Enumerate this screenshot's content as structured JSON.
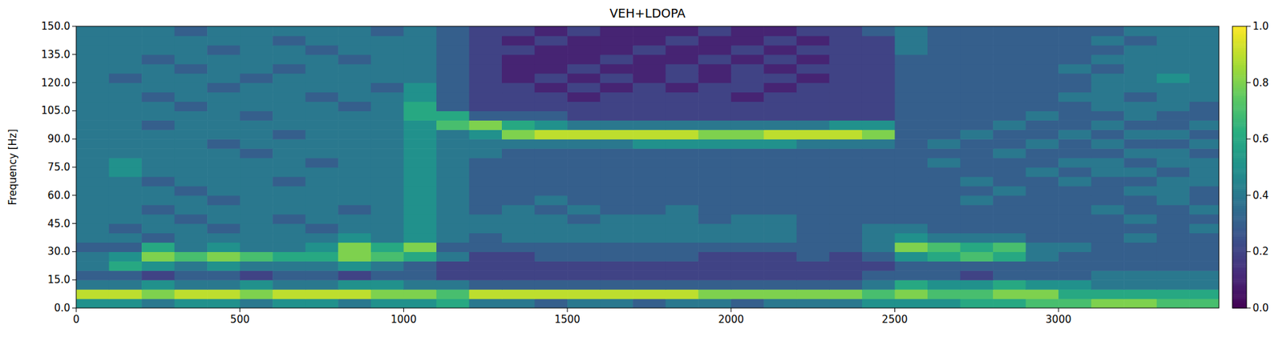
{
  "chart_data": {
    "type": "heatmap",
    "title": "VEH+LDOPA",
    "y_label": "Frequency [Hz]",
    "x": [
      0,
      100,
      200,
      300,
      400,
      500,
      600,
      700,
      800,
      900,
      1000,
      1100,
      1200,
      1300,
      1400,
      1500,
      1600,
      1700,
      1800,
      1900,
      2000,
      2100,
      2200,
      2300,
      2400,
      2500,
      2600,
      2700,
      2800,
      2900,
      3000,
      3100,
      3200,
      3300,
      3400,
      3490
    ],
    "y": [
      0,
      5,
      10,
      15,
      20,
      25,
      30,
      35,
      40,
      45,
      50,
      55,
      60,
      65,
      70,
      75,
      80,
      85,
      90,
      95,
      100,
      105,
      110,
      115,
      120,
      125,
      130,
      135,
      140,
      145,
      150
    ],
    "xlim": [
      0,
      3490
    ],
    "ylim": [
      0,
      150
    ],
    "xticks": [
      0,
      500,
      1000,
      1500,
      2000,
      2500,
      3000
    ],
    "yticks": [
      {
        "value": 0,
        "label": "0.0"
      },
      {
        "value": 15,
        "label": "15.0"
      },
      {
        "value": 30,
        "label": "30.0"
      },
      {
        "value": 45,
        "label": "45.0"
      },
      {
        "value": 60,
        "label": "60.0"
      },
      {
        "value": 75,
        "label": "75.0"
      },
      {
        "value": 90,
        "label": "90.0"
      },
      {
        "value": 105,
        "label": "105.0"
      },
      {
        "value": 120,
        "label": "120.0"
      },
      {
        "value": 135,
        "label": "135.0"
      },
      {
        "value": 150,
        "label": "150.0"
      }
    ],
    "colorbar_lim": [
      0,
      1
    ],
    "colorbar_ticks": [
      {
        "value": 0,
        "label": "0.0"
      },
      {
        "value": 0.2,
        "label": "0.2"
      },
      {
        "value": 0.4,
        "label": "0.4"
      },
      {
        "value": 0.6,
        "label": "0.6"
      },
      {
        "value": 0.8,
        "label": "0.8"
      },
      {
        "value": 1,
        "label": "1.0"
      }
    ],
    "values": [
      [
        0.5,
        0.5,
        0.4,
        0.5,
        0.5,
        0.4,
        0.5,
        0.5,
        0.4,
        0.5,
        0.5,
        0.6,
        0.4,
        0.4,
        0.3,
        0.4,
        0.4,
        0.3,
        0.4,
        0.4,
        0.3,
        0.4,
        0.4,
        0.4,
        0.5,
        0.5,
        0.5,
        0.6,
        0.6,
        0.7,
        0.7,
        0.8,
        0.8,
        0.7,
        0.7
      ],
      [
        0.9,
        0.9,
        0.8,
        0.9,
        0.9,
        0.8,
        0.9,
        0.9,
        0.9,
        0.8,
        0.8,
        0.7,
        0.9,
        0.9,
        0.9,
        0.9,
        0.9,
        0.9,
        0.9,
        0.8,
        0.8,
        0.8,
        0.8,
        0.8,
        0.7,
        0.8,
        0.7,
        0.7,
        0.8,
        0.8,
        0.6,
        0.6,
        0.6,
        0.6,
        0.6
      ],
      [
        0.4,
        0.4,
        0.5,
        0.4,
        0.4,
        0.5,
        0.4,
        0.4,
        0.5,
        0.5,
        0.4,
        0.4,
        0.3,
        0.3,
        0.3,
        0.3,
        0.3,
        0.3,
        0.3,
        0.3,
        0.3,
        0.3,
        0.3,
        0.3,
        0.4,
        0.6,
        0.5,
        0.5,
        0.6,
        0.5,
        0.5,
        0.4,
        0.4,
        0.4,
        0.4
      ],
      [
        0.3,
        0.3,
        0.2,
        0.3,
        0.3,
        0.2,
        0.3,
        0.3,
        0.2,
        0.3,
        0.3,
        0.2,
        0.2,
        0.2,
        0.2,
        0.2,
        0.2,
        0.2,
        0.2,
        0.2,
        0.2,
        0.2,
        0.2,
        0.2,
        0.3,
        0.3,
        0.3,
        0.2,
        0.3,
        0.3,
        0.3,
        0.4,
        0.4,
        0.4,
        0.4
      ],
      [
        0.4,
        0.6,
        0.5,
        0.4,
        0.5,
        0.4,
        0.4,
        0.4,
        0.5,
        0.4,
        0.3,
        0.2,
        0.2,
        0.2,
        0.2,
        0.2,
        0.2,
        0.2,
        0.2,
        0.2,
        0.2,
        0.2,
        0.2,
        0.2,
        0.2,
        0.3,
        0.3,
        0.3,
        0.3,
        0.3,
        0.3,
        0.3,
        0.3,
        0.3,
        0.3
      ],
      [
        0.4,
        0.5,
        0.8,
        0.7,
        0.8,
        0.7,
        0.6,
        0.6,
        0.8,
        0.7,
        0.6,
        0.4,
        0.2,
        0.2,
        0.3,
        0.3,
        0.3,
        0.3,
        0.3,
        0.2,
        0.2,
        0.2,
        0.3,
        0.2,
        0.3,
        0.5,
        0.6,
        0.7,
        0.6,
        0.4,
        0.3,
        0.3,
        0.3,
        0.3,
        0.3
      ],
      [
        0.3,
        0.3,
        0.6,
        0.4,
        0.5,
        0.4,
        0.4,
        0.5,
        0.8,
        0.6,
        0.8,
        0.3,
        0.3,
        0.3,
        0.3,
        0.3,
        0.3,
        0.3,
        0.3,
        0.3,
        0.3,
        0.3,
        0.3,
        0.3,
        0.4,
        0.8,
        0.7,
        0.6,
        0.7,
        0.4,
        0.4,
        0.3,
        0.3,
        0.3,
        0.3
      ],
      [
        0.4,
        0.4,
        0.3,
        0.4,
        0.4,
        0.4,
        0.4,
        0.4,
        0.5,
        0.4,
        0.5,
        0.4,
        0.3,
        0.4,
        0.4,
        0.4,
        0.4,
        0.4,
        0.4,
        0.4,
        0.4,
        0.4,
        0.3,
        0.3,
        0.4,
        0.5,
        0.4,
        0.4,
        0.4,
        0.3,
        0.3,
        0.3,
        0.4,
        0.3,
        0.3
      ],
      [
        0.4,
        0.3,
        0.4,
        0.4,
        0.3,
        0.4,
        0.4,
        0.3,
        0.4,
        0.4,
        0.5,
        0.4,
        0.4,
        0.4,
        0.4,
        0.4,
        0.4,
        0.4,
        0.4,
        0.4,
        0.4,
        0.4,
        0.3,
        0.3,
        0.4,
        0.4,
        0.3,
        0.3,
        0.3,
        0.3,
        0.3,
        0.3,
        0.3,
        0.3,
        0.4
      ],
      [
        0.4,
        0.4,
        0.4,
        0.3,
        0.4,
        0.4,
        0.3,
        0.4,
        0.4,
        0.4,
        0.5,
        0.4,
        0.4,
        0.4,
        0.4,
        0.3,
        0.4,
        0.4,
        0.4,
        0.3,
        0.4,
        0.4,
        0.3,
        0.3,
        0.3,
        0.3,
        0.3,
        0.3,
        0.3,
        0.3,
        0.3,
        0.3,
        0.4,
        0.3,
        0.3
      ],
      [
        0.4,
        0.4,
        0.3,
        0.4,
        0.4,
        0.4,
        0.4,
        0.4,
        0.3,
        0.4,
        0.5,
        0.4,
        0.3,
        0.4,
        0.3,
        0.4,
        0.3,
        0.3,
        0.4,
        0.3,
        0.3,
        0.3,
        0.3,
        0.3,
        0.3,
        0.3,
        0.3,
        0.3,
        0.3,
        0.3,
        0.3,
        0.4,
        0.3,
        0.3,
        0.4
      ],
      [
        0.4,
        0.4,
        0.4,
        0.4,
        0.3,
        0.4,
        0.4,
        0.4,
        0.4,
        0.4,
        0.5,
        0.4,
        0.3,
        0.3,
        0.4,
        0.3,
        0.3,
        0.3,
        0.3,
        0.3,
        0.3,
        0.3,
        0.3,
        0.3,
        0.3,
        0.3,
        0.3,
        0.4,
        0.3,
        0.3,
        0.3,
        0.3,
        0.3,
        0.4,
        0.3
      ],
      [
        0.4,
        0.4,
        0.4,
        0.3,
        0.4,
        0.4,
        0.4,
        0.4,
        0.4,
        0.4,
        0.5,
        0.4,
        0.3,
        0.3,
        0.3,
        0.3,
        0.3,
        0.3,
        0.3,
        0.3,
        0.3,
        0.3,
        0.3,
        0.3,
        0.3,
        0.3,
        0.3,
        0.3,
        0.4,
        0.3,
        0.3,
        0.3,
        0.4,
        0.4,
        0.3
      ],
      [
        0.4,
        0.4,
        0.3,
        0.4,
        0.4,
        0.4,
        0.3,
        0.4,
        0.4,
        0.4,
        0.5,
        0.4,
        0.3,
        0.3,
        0.3,
        0.3,
        0.3,
        0.3,
        0.3,
        0.3,
        0.3,
        0.3,
        0.3,
        0.3,
        0.3,
        0.3,
        0.3,
        0.4,
        0.3,
        0.3,
        0.4,
        0.3,
        0.3,
        0.4,
        0.4
      ],
      [
        0.4,
        0.5,
        0.4,
        0.4,
        0.4,
        0.4,
        0.4,
        0.4,
        0.4,
        0.4,
        0.5,
        0.4,
        0.3,
        0.3,
        0.3,
        0.3,
        0.3,
        0.3,
        0.3,
        0.3,
        0.3,
        0.3,
        0.3,
        0.3,
        0.3,
        0.3,
        0.3,
        0.3,
        0.3,
        0.4,
        0.3,
        0.4,
        0.4,
        0.3,
        0.4
      ],
      [
        0.4,
        0.5,
        0.4,
        0.4,
        0.4,
        0.4,
        0.4,
        0.3,
        0.4,
        0.4,
        0.5,
        0.4,
        0.3,
        0.3,
        0.3,
        0.3,
        0.3,
        0.3,
        0.3,
        0.3,
        0.3,
        0.3,
        0.3,
        0.3,
        0.3,
        0.3,
        0.4,
        0.3,
        0.3,
        0.3,
        0.4,
        0.4,
        0.3,
        0.4,
        0.4
      ],
      [
        0.4,
        0.4,
        0.4,
        0.4,
        0.4,
        0.3,
        0.4,
        0.4,
        0.4,
        0.4,
        0.5,
        0.4,
        0.4,
        0.3,
        0.3,
        0.3,
        0.3,
        0.3,
        0.3,
        0.3,
        0.3,
        0.3,
        0.3,
        0.3,
        0.3,
        0.3,
        0.3,
        0.3,
        0.4,
        0.3,
        0.3,
        0.3,
        0.4,
        0.4,
        0.3
      ],
      [
        0.4,
        0.4,
        0.4,
        0.4,
        0.3,
        0.4,
        0.4,
        0.4,
        0.4,
        0.4,
        0.5,
        0.4,
        0.4,
        0.4,
        0.4,
        0.4,
        0.4,
        0.5,
        0.5,
        0.5,
        0.5,
        0.5,
        0.4,
        0.4,
        0.4,
        0.3,
        0.4,
        0.3,
        0.3,
        0.4,
        0.3,
        0.4,
        0.3,
        0.3,
        0.4
      ],
      [
        0.4,
        0.4,
        0.4,
        0.4,
        0.4,
        0.4,
        0.3,
        0.4,
        0.4,
        0.4,
        0.5,
        0.4,
        0.5,
        0.8,
        0.9,
        0.9,
        0.9,
        0.9,
        0.9,
        0.8,
        0.8,
        0.9,
        0.9,
        0.9,
        0.8,
        0.3,
        0.3,
        0.4,
        0.3,
        0.3,
        0.4,
        0.3,
        0.4,
        0.4,
        0.3
      ],
      [
        0.4,
        0.4,
        0.3,
        0.4,
        0.4,
        0.4,
        0.4,
        0.4,
        0.4,
        0.4,
        0.5,
        0.7,
        0.8,
        0.6,
        0.5,
        0.4,
        0.4,
        0.4,
        0.4,
        0.4,
        0.4,
        0.4,
        0.4,
        0.5,
        0.5,
        0.3,
        0.3,
        0.3,
        0.4,
        0.3,
        0.3,
        0.4,
        0.3,
        0.3,
        0.4
      ],
      [
        0.4,
        0.4,
        0.4,
        0.4,
        0.4,
        0.3,
        0.4,
        0.4,
        0.4,
        0.4,
        0.6,
        0.6,
        0.3,
        0.3,
        0.3,
        0.2,
        0.2,
        0.2,
        0.2,
        0.2,
        0.2,
        0.2,
        0.2,
        0.2,
        0.2,
        0.3,
        0.3,
        0.3,
        0.3,
        0.4,
        0.3,
        0.3,
        0.4,
        0.3,
        0.3
      ],
      [
        0.4,
        0.4,
        0.4,
        0.3,
        0.4,
        0.4,
        0.4,
        0.4,
        0.3,
        0.4,
        0.6,
        0.3,
        0.2,
        0.2,
        0.2,
        0.2,
        0.2,
        0.2,
        0.2,
        0.2,
        0.2,
        0.2,
        0.2,
        0.2,
        0.2,
        0.3,
        0.3,
        0.3,
        0.3,
        0.3,
        0.3,
        0.4,
        0.4,
        0.4,
        0.3
      ],
      [
        0.4,
        0.4,
        0.3,
        0.4,
        0.4,
        0.4,
        0.4,
        0.3,
        0.4,
        0.4,
        0.5,
        0.3,
        0.2,
        0.2,
        0.2,
        0.1,
        0.2,
        0.2,
        0.2,
        0.2,
        0.1,
        0.2,
        0.2,
        0.2,
        0.2,
        0.3,
        0.3,
        0.3,
        0.3,
        0.3,
        0.4,
        0.4,
        0.3,
        0.4,
        0.4
      ],
      [
        0.4,
        0.4,
        0.4,
        0.4,
        0.3,
        0.4,
        0.4,
        0.4,
        0.4,
        0.3,
        0.5,
        0.3,
        0.2,
        0.2,
        0.1,
        0.2,
        0.1,
        0.2,
        0.1,
        0.2,
        0.2,
        0.1,
        0.2,
        0.2,
        0.2,
        0.3,
        0.3,
        0.3,
        0.3,
        0.3,
        0.3,
        0.4,
        0.4,
        0.4,
        0.4
      ],
      [
        0.4,
        0.3,
        0.4,
        0.4,
        0.4,
        0.3,
        0.4,
        0.4,
        0.4,
        0.4,
        0.4,
        0.3,
        0.2,
        0.1,
        0.2,
        0.1,
        0.2,
        0.1,
        0.2,
        0.1,
        0.2,
        0.2,
        0.1,
        0.2,
        0.2,
        0.3,
        0.3,
        0.3,
        0.3,
        0.3,
        0.3,
        0.4,
        0.4,
        0.5,
        0.4
      ],
      [
        0.4,
        0.4,
        0.4,
        0.3,
        0.4,
        0.4,
        0.3,
        0.4,
        0.4,
        0.4,
        0.4,
        0.3,
        0.2,
        0.1,
        0.1,
        0.2,
        0.1,
        0.1,
        0.2,
        0.1,
        0.2,
        0.1,
        0.2,
        0.2,
        0.2,
        0.3,
        0.3,
        0.3,
        0.3,
        0.3,
        0.4,
        0.3,
        0.4,
        0.4,
        0.4
      ],
      [
        0.4,
        0.4,
        0.3,
        0.4,
        0.4,
        0.4,
        0.4,
        0.4,
        0.3,
        0.4,
        0.4,
        0.3,
        0.2,
        0.1,
        0.1,
        0.1,
        0.2,
        0.1,
        0.1,
        0.2,
        0.1,
        0.2,
        0.1,
        0.2,
        0.2,
        0.3,
        0.3,
        0.3,
        0.3,
        0.3,
        0.3,
        0.4,
        0.4,
        0.4,
        0.4
      ],
      [
        0.4,
        0.4,
        0.4,
        0.4,
        0.3,
        0.4,
        0.4,
        0.3,
        0.4,
        0.4,
        0.4,
        0.3,
        0.2,
        0.2,
        0.1,
        0.1,
        0.1,
        0.2,
        0.1,
        0.1,
        0.2,
        0.1,
        0.2,
        0.2,
        0.2,
        0.4,
        0.3,
        0.3,
        0.3,
        0.3,
        0.3,
        0.3,
        0.4,
        0.4,
        0.4
      ],
      [
        0.4,
        0.4,
        0.4,
        0.4,
        0.4,
        0.4,
        0.3,
        0.4,
        0.4,
        0.4,
        0.4,
        0.3,
        0.2,
        0.1,
        0.2,
        0.1,
        0.1,
        0.1,
        0.2,
        0.1,
        0.1,
        0.2,
        0.1,
        0.2,
        0.2,
        0.4,
        0.3,
        0.3,
        0.3,
        0.3,
        0.3,
        0.4,
        0.3,
        0.4,
        0.4
      ],
      [
        0.4,
        0.4,
        0.4,
        0.3,
        0.4,
        0.4,
        0.4,
        0.4,
        0.4,
        0.3,
        0.4,
        0.3,
        0.2,
        0.2,
        0.1,
        0.2,
        0.1,
        0.1,
        0.1,
        0.2,
        0.1,
        0.1,
        0.2,
        0.2,
        0.3,
        0.4,
        0.3,
        0.3,
        0.3,
        0.3,
        0.3,
        0.3,
        0.4,
        0.4,
        0.4
      ]
    ]
  }
}
